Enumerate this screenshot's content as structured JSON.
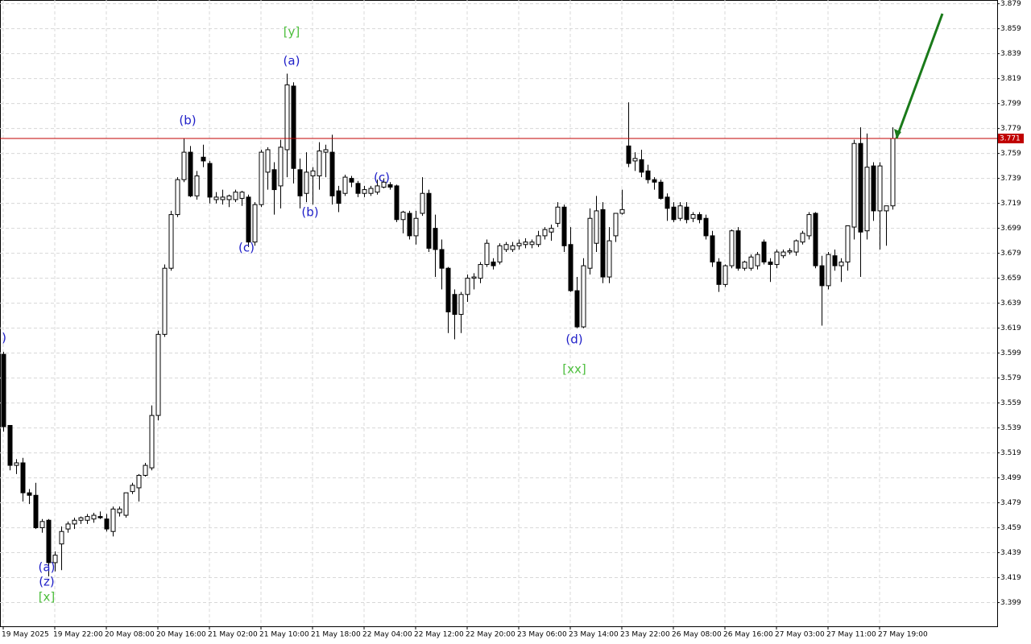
{
  "chart_data": {
    "type": "candlestick",
    "categories": [
      "19 May 2025",
      null,
      null,
      null,
      null,
      null,
      null,
      null,
      "19 May 22:00",
      null,
      null,
      null,
      null,
      null,
      null,
      null,
      "20 May 08:00",
      null,
      null,
      null,
      null,
      null,
      null,
      null,
      "20 May 16:00",
      null,
      null,
      null,
      null,
      null,
      null,
      null,
      "21 May 02:00",
      null,
      null,
      null,
      null,
      null,
      null,
      null,
      "21 May 10:00",
      null,
      null,
      null,
      null,
      null,
      null,
      null,
      "21 May 18:00",
      null,
      null,
      null,
      null,
      null,
      null,
      null,
      "22 May 04:00",
      null,
      null,
      null,
      null,
      null,
      null,
      null,
      "22 May 12:00",
      null,
      null,
      null,
      null,
      null,
      null,
      null,
      "22 May 20:00",
      null,
      null,
      null,
      null,
      null,
      null,
      null,
      "23 May 06:00",
      null,
      null,
      null,
      null,
      null,
      null,
      null,
      "23 May 14:00",
      null,
      null,
      null,
      null,
      null,
      null,
      null,
      "23 May 22:00",
      null,
      null,
      null,
      null,
      null,
      null,
      null,
      "26 May 08:00",
      null,
      null,
      null,
      null,
      null,
      null,
      null,
      "26 May 16:00",
      null,
      null,
      null,
      null,
      null,
      null,
      null,
      "27 May 03:00",
      null,
      null,
      null,
      null,
      null,
      null,
      null,
      "27 May 11:00",
      null,
      null,
      null,
      null,
      null,
      null,
      null,
      "27 May 19:00",
      null,
      null
    ],
    "open": [
      3.598,
      3.541,
      3.509,
      3.511,
      3.487,
      3.485,
      3.459,
      3.465,
      3.431,
      3.446,
      3.458,
      3.462,
      3.465,
      3.465,
      3.466,
      3.468,
      3.466,
      3.456,
      3.471,
      3.469,
      3.488,
      3.491,
      3.501,
      3.507,
      3.549,
      3.614,
      3.667,
      3.71,
      3.738,
      3.76,
      3.725,
      3.756,
      3.751,
      3.722,
      3.722,
      3.722,
      3.722,
      3.723,
      3.724,
      3.688,
      3.718,
      3.744,
      3.746,
      3.733,
      3.762,
      3.813,
      3.746,
      3.727,
      3.741,
      3.741,
      3.76,
      3.76,
      3.729,
      3.727,
      3.739,
      3.735,
      3.727,
      3.727,
      3.728,
      3.732,
      3.734,
      3.733,
      3.706,
      3.711,
      3.693,
      3.711,
      3.727,
      3.699,
      3.682,
      3.667,
      3.646,
      3.63,
      3.646,
      3.659,
      3.659,
      3.67,
      3.672,
      3.672,
      3.682,
      3.682,
      3.685,
      3.686,
      3.686,
      3.686,
      3.693,
      3.696,
      3.703,
      3.716,
      3.686,
      3.649,
      3.62,
      3.667,
      3.687,
      3.714,
      3.66,
      3.693,
      3.711,
      3.765,
      3.753,
      3.754,
      3.745,
      3.738,
      3.736,
      3.724,
      3.716,
      3.707,
      3.716,
      3.707,
      3.71,
      3.707,
      3.693,
      3.672,
      3.654,
      3.669,
      3.697,
      3.667,
      3.667,
      3.669,
      3.688,
      3.672,
      3.67,
      3.677,
      3.68,
      3.68,
      3.688,
      3.693,
      3.711,
      3.669,
      3.653,
      3.677,
      3.669,
      3.672,
      3.7,
      3.767,
      3.697,
      3.749,
      3.713,
      3.713,
      3.717
    ],
    "high": [
      3.6,
      3.541,
      3.514,
      3.515,
      3.49,
      3.495,
      3.466,
      3.466,
      3.44,
      3.46,
      3.464,
      3.467,
      3.468,
      3.47,
      3.471,
      3.472,
      3.47,
      3.476,
      3.476,
      3.487,
      3.495,
      3.502,
      3.511,
      3.557,
      3.617,
      3.67,
      3.713,
      3.74,
      3.771,
      3.765,
      3.745,
      3.766,
      3.753,
      3.728,
      3.73,
      3.726,
      3.73,
      3.729,
      3.726,
      3.72,
      3.762,
      3.764,
      3.752,
      3.77,
      3.823,
      3.816,
      3.755,
      3.76,
      3.748,
      3.768,
      3.766,
      3.774,
      3.733,
      3.742,
      3.741,
      3.737,
      3.733,
      3.733,
      3.738,
      3.739,
      3.736,
      3.734,
      3.713,
      3.713,
      3.713,
      3.74,
      3.73,
      3.71,
      3.69,
      3.668,
      3.65,
      3.648,
      3.662,
      3.663,
      3.672,
      3.69,
      3.675,
      3.687,
      3.688,
      3.688,
      3.69,
      3.691,
      3.69,
      3.697,
      3.7,
      3.702,
      3.72,
      3.718,
      3.7,
      3.66,
      3.675,
      3.715,
      3.725,
      3.72,
      3.7,
      3.711,
      3.73,
      3.8,
      3.76,
      3.762,
      3.75,
      3.74,
      3.738,
      3.727,
      3.72,
      3.72,
      3.72,
      3.712,
      3.712,
      3.71,
      3.697,
      3.675,
      3.67,
      3.698,
      3.7,
      3.673,
      3.678,
      3.68,
      3.69,
      3.675,
      3.682,
      3.682,
      3.683,
      3.69,
      3.697,
      3.712,
      3.712,
      3.677,
      3.68,
      3.682,
      3.675,
      3.7,
      3.77,
      3.78,
      3.775,
      3.752,
      3.752,
      3.716,
      3.78
    ],
    "low": [
      3.536,
      3.505,
      3.502,
      3.48,
      3.478,
      3.458,
      3.455,
      3.42,
      3.424,
      3.425,
      3.455,
      3.458,
      3.462,
      3.462,
      3.463,
      3.466,
      3.456,
      3.452,
      3.468,
      3.467,
      3.486,
      3.48,
      3.5,
      3.505,
      3.545,
      3.612,
      3.665,
      3.708,
      3.736,
      3.724,
      3.722,
      3.748,
      3.719,
      3.719,
      3.718,
      3.716,
      3.72,
      3.717,
      3.684,
      3.685,
      3.716,
      3.73,
      3.71,
      3.715,
      3.74,
      3.735,
      3.715,
      3.72,
      3.718,
      3.73,
      3.74,
      3.718,
      3.712,
      3.725,
      3.732,
      3.724,
      3.724,
      3.725,
      3.726,
      3.731,
      3.73,
      3.704,
      3.695,
      3.69,
      3.686,
      3.709,
      3.68,
      3.66,
      3.65,
      3.615,
      3.61,
      3.615,
      3.64,
      3.65,
      3.655,
      3.668,
      3.666,
      3.67,
      3.68,
      3.68,
      3.682,
      3.683,
      3.683,
      3.684,
      3.69,
      3.689,
      3.7,
      3.68,
      3.648,
      3.619,
      3.619,
      3.662,
      3.68,
      3.655,
      3.655,
      3.688,
      3.71,
      3.748,
      3.745,
      3.74,
      3.735,
      3.73,
      3.722,
      3.705,
      3.704,
      3.705,
      3.703,
      3.704,
      3.703,
      3.69,
      3.668,
      3.648,
      3.652,
      3.667,
      3.665,
      3.665,
      3.665,
      3.666,
      3.67,
      3.656,
      3.667,
      3.675,
      3.678,
      3.677,
      3.686,
      3.69,
      3.667,
      3.621,
      3.65,
      3.665,
      3.656,
      3.665,
      3.69,
      3.66,
      3.69,
      3.705,
      3.682,
      3.685,
      3.714
    ],
    "close": [
      3.54,
      3.509,
      3.511,
      3.487,
      3.485,
      3.459,
      3.464,
      3.431,
      3.437,
      3.456,
      3.462,
      3.465,
      3.467,
      3.468,
      3.469,
      3.467,
      3.458,
      3.474,
      3.474,
      3.487,
      3.493,
      3.501,
      3.509,
      3.549,
      3.614,
      3.667,
      3.71,
      3.738,
      3.76,
      3.725,
      3.741,
      3.753,
      3.724,
      3.724,
      3.724,
      3.725,
      3.728,
      3.728,
      3.688,
      3.718,
      3.76,
      3.762,
      3.73,
      3.764,
      3.814,
      3.747,
      3.725,
      3.744,
      3.745,
      3.761,
      3.762,
      3.725,
      3.719,
      3.74,
      3.736,
      3.727,
      3.73,
      3.731,
      3.733,
      3.736,
      3.732,
      3.706,
      3.712,
      3.693,
      3.707,
      3.727,
      3.683,
      3.682,
      3.667,
      3.632,
      3.63,
      3.646,
      3.659,
      3.66,
      3.67,
      3.687,
      3.669,
      3.685,
      3.686,
      3.685,
      3.687,
      3.688,
      3.688,
      3.693,
      3.698,
      3.699,
      3.716,
      3.685,
      3.649,
      3.62,
      3.669,
      3.707,
      3.713,
      3.66,
      3.689,
      3.711,
      3.714,
      3.751,
      3.755,
      3.744,
      3.738,
      3.736,
      3.723,
      3.715,
      3.706,
      3.717,
      3.706,
      3.71,
      3.706,
      3.693,
      3.672,
      3.654,
      3.669,
      3.697,
      3.667,
      3.672,
      3.676,
      3.678,
      3.672,
      3.67,
      3.68,
      3.68,
      3.681,
      3.689,
      3.695,
      3.71,
      3.669,
      3.653,
      3.678,
      3.669,
      3.672,
      3.701,
      3.767,
      3.696,
      3.748,
      3.713,
      3.749,
      3.717,
      3.771
    ],
    "bull_color": "#ffffff",
    "bear_color": "#000000",
    "wick_color": "#000000",
    "ylim": [
      3.38,
      3.882
    ],
    "yticks": [
      3.879,
      3.859,
      3.839,
      3.819,
      3.799,
      3.779,
      3.759,
      3.739,
      3.719,
      3.699,
      3.679,
      3.659,
      3.639,
      3.619,
      3.599,
      3.579,
      3.559,
      3.539,
      3.519,
      3.499,
      3.479,
      3.459,
      3.439,
      3.419,
      3.399
    ],
    "grid": true,
    "current_price": 3.771,
    "current_price_color": "#c00000",
    "annotations": [
      ")",
      "(a)",
      "(z)",
      "[x]",
      "(b)",
      "(c)",
      "[y]",
      "(a)",
      "(b)",
      "(c)",
      "(d)",
      "[xx]"
    ],
    "wave_color": "#1e1ec8",
    "degree_color": "#4cbe3c"
  }
}
